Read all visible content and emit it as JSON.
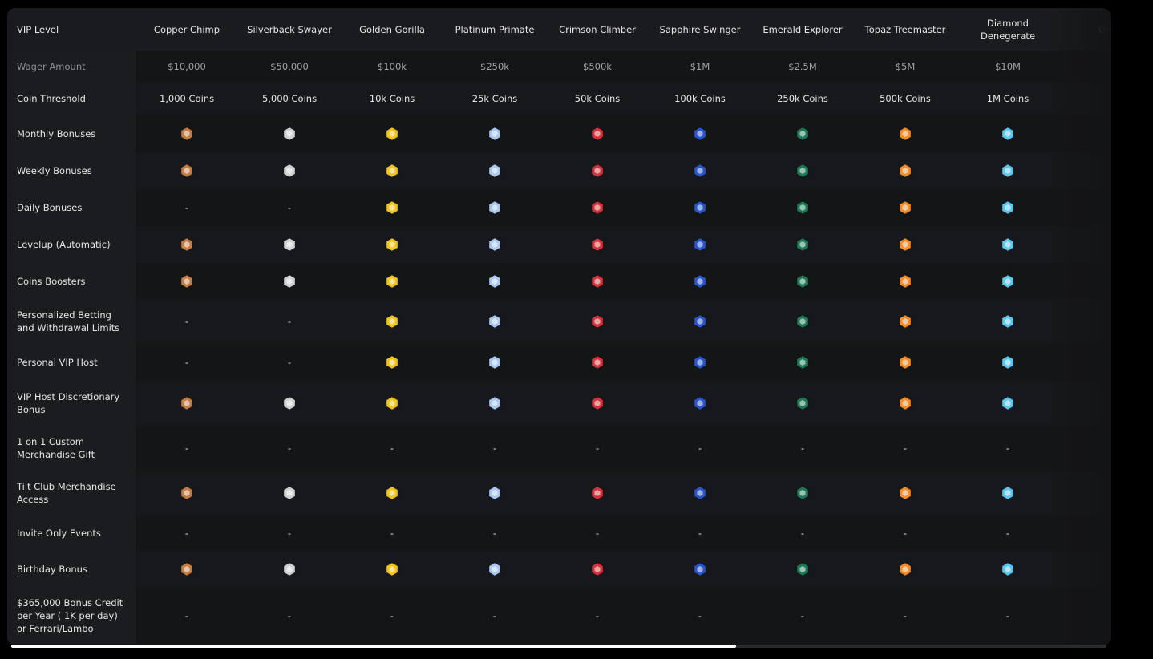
{
  "table": {
    "corner": "VIP Level",
    "tiers": [
      {
        "name": "Copper Chimp",
        "color": "#c27d43"
      },
      {
        "name": "Silverback Swayer",
        "color": "#cfd1d4"
      },
      {
        "name": "Golden Gorilla",
        "color": "#f0c419"
      },
      {
        "name": "Platinum Primate",
        "color": "#a8c8f2"
      },
      {
        "name": "Crimson Climber",
        "color": "#d2333c"
      },
      {
        "name": "Sapphire Swinger",
        "color": "#2a56cc"
      },
      {
        "name": "Emerald Explorer",
        "color": "#1e7a56"
      },
      {
        "name": "Topaz Treemaster",
        "color": "#f08d2c"
      },
      {
        "name": "Diamond Denegerate",
        "color": "#5cc6ee"
      }
    ],
    "partial_tier": "Onyx",
    "rows": [
      {
        "label": "Wager Amount",
        "cells": [
          "$10,000",
          "$50,000",
          "$100k",
          "$250k",
          "$500k",
          "$1M",
          "$2.5M",
          "$5M",
          "$10M"
        ]
      },
      {
        "label": "Coin Threshold",
        "cells": [
          "1,000 Coins",
          "5,000 Coins",
          "10k Coins",
          "25k Coins",
          "50k Coins",
          "100k Coins",
          "250k Coins",
          "500k Coins",
          "1M Coins"
        ]
      },
      {
        "label": "Monthly Bonuses",
        "cells": [
          true,
          true,
          true,
          true,
          true,
          true,
          true,
          true,
          true
        ]
      },
      {
        "label": "Weekly Bonuses",
        "cells": [
          true,
          true,
          true,
          true,
          true,
          true,
          true,
          true,
          true
        ]
      },
      {
        "label": "Daily Bonuses",
        "cells": [
          "-",
          "-",
          true,
          true,
          true,
          true,
          true,
          true,
          true
        ]
      },
      {
        "label": "Levelup (Automatic)",
        "cells": [
          true,
          true,
          true,
          true,
          true,
          true,
          true,
          true,
          true
        ]
      },
      {
        "label": "Coins Boosters",
        "cells": [
          true,
          true,
          true,
          true,
          true,
          true,
          true,
          true,
          true
        ]
      },
      {
        "label": "Personalized Betting and Withdrawal Limits",
        "cells": [
          "-",
          "-",
          true,
          true,
          true,
          true,
          true,
          true,
          true
        ]
      },
      {
        "label": "Personal VIP Host",
        "cells": [
          "-",
          "-",
          true,
          true,
          true,
          true,
          true,
          true,
          true
        ]
      },
      {
        "label": "VIP Host Discretionary Bonus",
        "cells": [
          true,
          true,
          true,
          true,
          true,
          true,
          true,
          true,
          true
        ]
      },
      {
        "label": "1 on 1 Custom Merchandise Gift",
        "cells": [
          "-",
          "-",
          "-",
          "-",
          "-",
          "-",
          "-",
          "-",
          "-"
        ]
      },
      {
        "label": "Tilt Club Merchandise Access",
        "cells": [
          true,
          true,
          true,
          true,
          true,
          true,
          true,
          true,
          true
        ]
      },
      {
        "label": "Invite Only Events",
        "cells": [
          "-",
          "-",
          "-",
          "-",
          "-",
          "-",
          "-",
          "-",
          "-"
        ]
      },
      {
        "label": "Birthday Bonus",
        "cells": [
          true,
          true,
          true,
          true,
          true,
          true,
          true,
          true,
          true
        ]
      },
      {
        "label": "$365,000 Bonus Credit per Year ( 1K per day) or Ferrari/Lambo",
        "cells": [
          "-",
          "-",
          "-",
          "-",
          "-",
          "-",
          "-",
          "-",
          "-"
        ]
      }
    ]
  }
}
